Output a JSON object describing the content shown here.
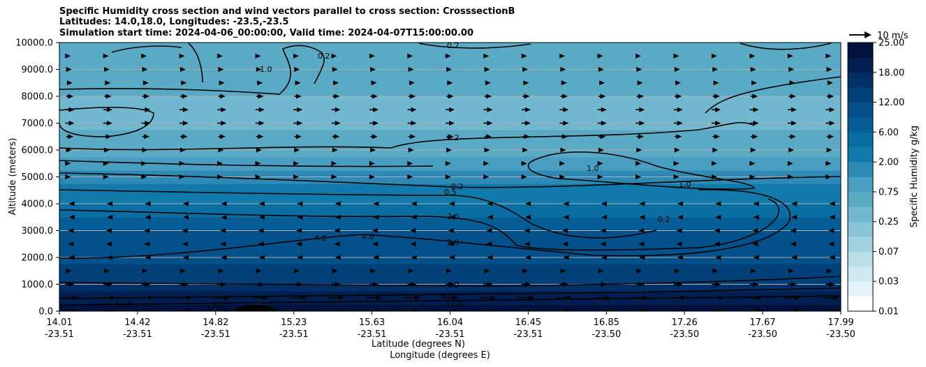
{
  "chart_data": {
    "type": "heatmap",
    "title_lines": [
      "Specific Humidity cross section and wind vectors parallel to cross section: CrosssectionB",
      "Latitudes: 14.0,18.0, Longitudes: -23.5,-23.5",
      "Simulation start time: 2024-04-06_00:00:00, Valid time: 2024-04-07T15:00:00.00"
    ],
    "xlabel": "Latitude (degrees N)",
    "xlabel2": "Longitude (degrees E)",
    "ylabel": "Altitude (meters)",
    "ylim": [
      0,
      10000
    ],
    "y_ticks": [
      "0.0",
      "1000.0",
      "2000.0",
      "3000.0",
      "4000.0",
      "5000.0",
      "6000.0",
      "7000.0",
      "8000.0",
      "9000.0",
      "10000.0"
    ],
    "x_ticks": [
      {
        "lat": "14.01",
        "lon": "-23.51"
      },
      {
        "lat": "14.42",
        "lon": "-23.51"
      },
      {
        "lat": "14.82",
        "lon": "-23.51"
      },
      {
        "lat": "15.23",
        "lon": "-23.51"
      },
      {
        "lat": "15.63",
        "lon": "-23.51"
      },
      {
        "lat": "16.04",
        "lon": "-23.51"
      },
      {
        "lat": "16.45",
        "lon": "-23.51"
      },
      {
        "lat": "16.85",
        "lon": "-23.50"
      },
      {
        "lat": "17.26",
        "lon": "-23.50"
      },
      {
        "lat": "17.67",
        "lon": "-23.50"
      },
      {
        "lat": "17.99",
        "lon": "-23.50"
      }
    ],
    "grid": "horizontal",
    "colorbar": {
      "label": "Specific Humidity g/kg",
      "tick_labels": [
        "0.01",
        "0.03",
        "0.07",
        "0.25",
        "0.75",
        "2.00",
        "6.00",
        "12.00",
        "18.00",
        "25.00"
      ],
      "colors": [
        "#ffffff",
        "#e3f2f6",
        "#cfe8f0",
        "#b9dde9",
        "#a2d1e0",
        "#8ac4d8",
        "#71b7cf",
        "#5aaac6",
        "#4a9ec2",
        "#2e8ab4",
        "#117aab",
        "#0b6ea3",
        "#065d96",
        "#04508a",
        "#033f78",
        "#022f66",
        "#011f50",
        "#00113b"
      ]
    },
    "quiver_key": {
      "label": "10 m/s",
      "speed": 10
    },
    "contour_labels": [
      "0.2",
      "1.0",
      "0.5",
      "2.0",
      "4.0",
      "8.0",
      "12.0"
    ],
    "humidity_profile": [
      {
        "altitude": 0,
        "q": 18.0
      },
      {
        "altitude": 500,
        "q": 12.0
      },
      {
        "altitude": 1000,
        "q": 7.0
      },
      {
        "altitude": 2000,
        "q": 4.0
      },
      {
        "altitude": 3000,
        "q": 3.0
      },
      {
        "altitude": 4000,
        "q": 1.3
      },
      {
        "altitude": 5000,
        "q": 0.6
      },
      {
        "altitude": 6000,
        "q": 0.25
      },
      {
        "altitude": 7000,
        "q": 0.2
      },
      {
        "altitude": 8000,
        "q": 0.2
      },
      {
        "altitude": 9000,
        "q": 0.3
      },
      {
        "altitude": 10000,
        "q": 0.3
      }
    ],
    "wind_profile": [
      {
        "altitude": 0,
        "u": 8
      },
      {
        "altitude": 500,
        "u": 9
      },
      {
        "altitude": 1000,
        "u": 5
      },
      {
        "altitude": 1500,
        "u": 2
      },
      {
        "altitude": 2000,
        "u": -1
      },
      {
        "altitude": 2500,
        "u": -2
      },
      {
        "altitude": 3000,
        "u": -2
      },
      {
        "altitude": 3500,
        "u": -1
      },
      {
        "altitude": 4000,
        "u": -1
      },
      {
        "altitude": 4500,
        "u": 0
      },
      {
        "altitude": 5000,
        "u": 1
      },
      {
        "altitude": 5500,
        "u": 1
      },
      {
        "altitude": 6000,
        "u": 2
      },
      {
        "altitude": 6500,
        "u": 4
      },
      {
        "altitude": 7000,
        "u": 5
      },
      {
        "altitude": 7500,
        "u": 5
      },
      {
        "altitude": 8000,
        "u": 4
      },
      {
        "altitude": 8500,
        "u": 3
      },
      {
        "altitude": 9000,
        "u": 2
      },
      {
        "altitude": 9500,
        "u": 1
      }
    ]
  }
}
